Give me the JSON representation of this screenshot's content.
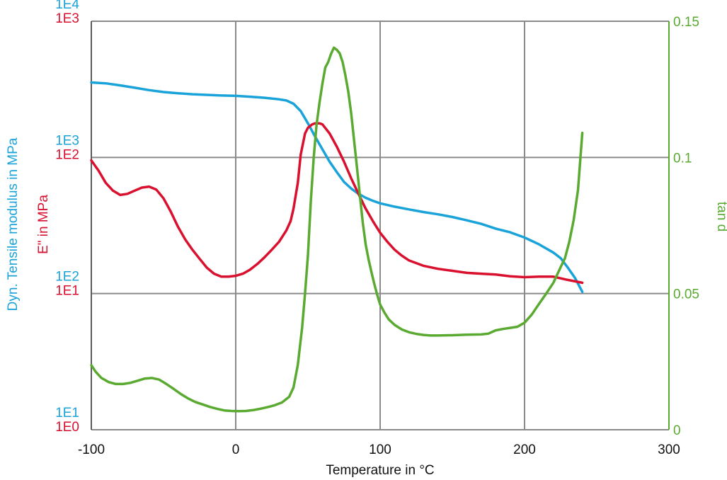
{
  "chart_data": {
    "type": "line",
    "title": "",
    "xlabel": "Temperature in  °C",
    "xlim": [
      -100,
      300
    ],
    "x_ticks": [
      "-100",
      "0",
      "100",
      "200",
      "300"
    ],
    "ylabel_modulus": "Dyn. Tensile modulus in  MPa",
    "ylabel_loss": "E\" in  MPa",
    "ylabel_tand": "tan d",
    "left_ticks_modulus": [
      "1E1",
      "1E2",
      "1E3",
      "1E4"
    ],
    "left_ticks_loss": [
      "1E0",
      "1E1",
      "1E2",
      "1E3"
    ],
    "right_ticks": [
      "0",
      "0.05",
      "0.1",
      "0.15"
    ],
    "ylim_modulus": [
      10,
      10000
    ],
    "ylim_loss": [
      1,
      1000
    ],
    "ylim_tand": [
      0,
      0.15
    ],
    "y_scale_left": "log",
    "grid": true,
    "colors": {
      "modulus": "#1aa3d9",
      "loss": "#d9102e",
      "tand": "#5aaa32",
      "grid": "#8a8a8a"
    },
    "series": [
      {
        "key": "modulus",
        "axis": "modulus",
        "x": [
          -100,
          -90,
          -80,
          -70,
          -60,
          -50,
          -40,
          -30,
          -20,
          -10,
          0,
          10,
          20,
          30,
          35,
          40,
          45,
          50,
          55,
          60,
          65,
          70,
          75,
          80,
          85,
          90,
          95,
          100,
          110,
          120,
          130,
          140,
          150,
          160,
          170,
          180,
          190,
          200,
          210,
          220,
          225,
          230,
          235,
          240
        ],
        "values": [
          3550,
          3500,
          3380,
          3250,
          3120,
          3020,
          2960,
          2910,
          2880,
          2850,
          2830,
          2790,
          2740,
          2670,
          2620,
          2480,
          2190,
          1780,
          1420,
          1150,
          930,
          780,
          660,
          590,
          540,
          505,
          480,
          460,
          435,
          415,
          397,
          382,
          365,
          345,
          325,
          300,
          282,
          258,
          230,
          200,
          182,
          155,
          130,
          103
        ]
      },
      {
        "key": "loss",
        "axis": "loss",
        "x": [
          -100,
          -95,
          -90,
          -85,
          -80,
          -75,
          -70,
          -65,
          -60,
          -55,
          -50,
          -45,
          -40,
          -35,
          -30,
          -25,
          -20,
          -15,
          -10,
          -5,
          0,
          5,
          10,
          15,
          20,
          25,
          30,
          35,
          38,
          40,
          43,
          45,
          48,
          50,
          53,
          55,
          58,
          60,
          65,
          70,
          75,
          80,
          85,
          90,
          95,
          100,
          105,
          110,
          115,
          120,
          130,
          140,
          150,
          160,
          170,
          180,
          190,
          200,
          210,
          220,
          230,
          240
        ],
        "values": [
          95,
          80,
          65,
          57,
          53,
          54,
          57,
          60,
          61,
          58,
          50,
          40,
          31,
          25,
          21,
          18,
          15.5,
          14,
          13.3,
          13.3,
          13.5,
          14,
          15,
          16.5,
          18.5,
          21,
          24,
          29,
          34,
          42,
          65,
          105,
          150,
          165,
          175,
          178,
          178,
          175,
          150,
          120,
          93,
          70,
          54,
          42,
          34,
          28,
          24,
          21,
          19,
          17.5,
          16,
          15.2,
          14.7,
          14.2,
          14,
          13.8,
          13.4,
          13.2,
          13.3,
          13.3,
          12.6,
          12
        ]
      },
      {
        "key": "tand",
        "axis": "tand",
        "x": [
          -100,
          -97,
          -93,
          -88,
          -83,
          -78,
          -73,
          -68,
          -63,
          -58,
          -53,
          -48,
          -43,
          -38,
          -33,
          -28,
          -23,
          -18,
          -13,
          -8,
          -3,
          2,
          7,
          12,
          17,
          22,
          27,
          32,
          37,
          40,
          43,
          46,
          48,
          50,
          52,
          54,
          56,
          58,
          60,
          62,
          64,
          66,
          68,
          70,
          72,
          74,
          76,
          78,
          80,
          82,
          84,
          86,
          88,
          90,
          92,
          94,
          96,
          98,
          100,
          103,
          106,
          110,
          115,
          120,
          125,
          130,
          135,
          140,
          150,
          160,
          170,
          175,
          180,
          185,
          190,
          195,
          200,
          205,
          210,
          215,
          220,
          225,
          228,
          231,
          234,
          237,
          240
        ],
        "values": [
          0.0237,
          0.0213,
          0.019,
          0.0175,
          0.0168,
          0.0168,
          0.0172,
          0.018,
          0.0188,
          0.019,
          0.0184,
          0.0168,
          0.015,
          0.0131,
          0.0115,
          0.0102,
          0.0093,
          0.0084,
          0.0077,
          0.0071,
          0.0069,
          0.0068,
          0.0069,
          0.0072,
          0.0077,
          0.0083,
          0.009,
          0.01,
          0.0121,
          0.0155,
          0.0238,
          0.0375,
          0.05,
          0.064,
          0.084,
          0.1,
          0.112,
          0.12,
          0.127,
          0.133,
          0.135,
          0.138,
          0.1403,
          0.1395,
          0.1382,
          0.135,
          0.13,
          0.124,
          0.116,
          0.106,
          0.096,
          0.086,
          0.076,
          0.068,
          0.0625,
          0.0578,
          0.0535,
          0.0495,
          0.046,
          0.043,
          0.0405,
          0.0385,
          0.0368,
          0.0358,
          0.0352,
          0.0348,
          0.0346,
          0.0346,
          0.0347,
          0.0349,
          0.035,
          0.0353,
          0.0365,
          0.037,
          0.0374,
          0.0378,
          0.0393,
          0.0423,
          0.0462,
          0.05,
          0.054,
          0.0597,
          0.063,
          0.069,
          0.077,
          0.088,
          0.109
        ]
      }
    ]
  }
}
